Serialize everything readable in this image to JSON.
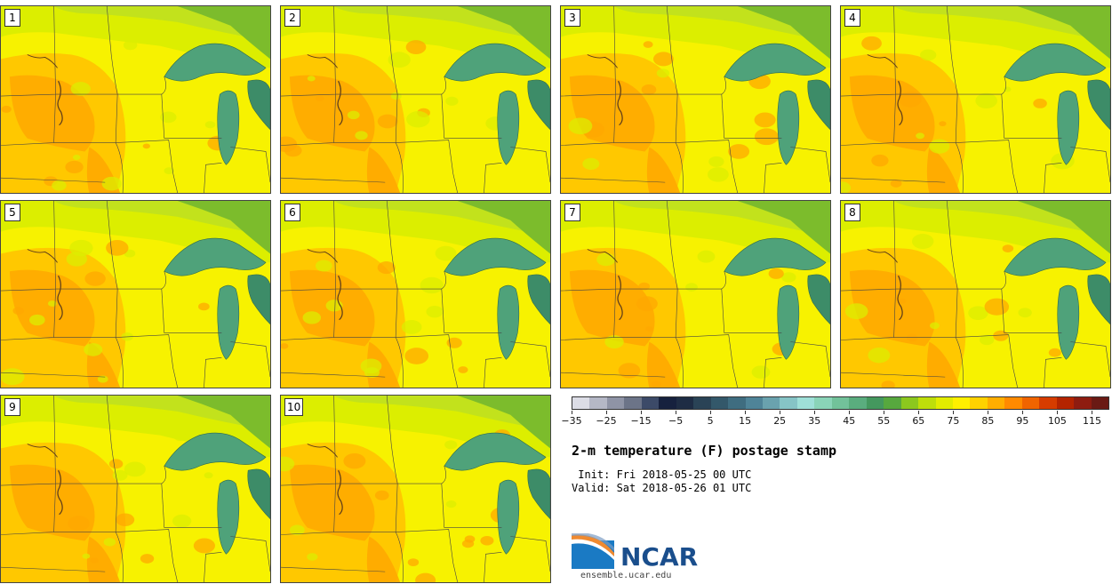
{
  "members": [
    "1",
    "2",
    "3",
    "4",
    "5",
    "6",
    "7",
    "8",
    "9",
    "10"
  ],
  "colorbar": {
    "colors": [
      "#dcdde6",
      "#b5b8c6",
      "#8f94a6",
      "#6c7488",
      "#3c4a68",
      "#16213e",
      "#1e2c44",
      "#2a4356",
      "#33586a",
      "#3f6d80",
      "#4f8498",
      "#6aa2ae",
      "#86c4c6",
      "#9fe0d8",
      "#8ad4b8",
      "#72c29a",
      "#5aad7e",
      "#44985e",
      "#57a83e",
      "#8cc81e",
      "#bede0a",
      "#e2ec00",
      "#fff000",
      "#ffd200",
      "#ffae00",
      "#ff8a00",
      "#f06400",
      "#d63c00",
      "#b42400",
      "#8e1c10",
      "#6a1a14"
    ],
    "ticks": [
      "−35",
      "−25",
      "−15",
      "−5",
      "5",
      "15",
      "25",
      "35",
      "45",
      "55",
      "65",
      "75",
      "85",
      "95",
      "105",
      "115"
    ]
  },
  "title": "2-m temperature (F) postage stamp",
  "init": " Init: Fri 2018-05-25 00 UTC",
  "valid": "Valid: Sat 2018-05-26 01 UTC",
  "logo": {
    "name": "NCAR",
    "url": "ensemble.ucar.edu",
    "blue": "#1a4e8c",
    "accent": "#f08a30"
  },
  "palette": {
    "orange": "#ffa800",
    "light_orange": "#ffc800",
    "yellow": "#f7f200",
    "yellow_green": "#dcee00",
    "light_green": "#c2e21c",
    "green": "#7cbc2c",
    "lake": "#4fa27a",
    "lake_dark": "#3d8c68"
  }
}
